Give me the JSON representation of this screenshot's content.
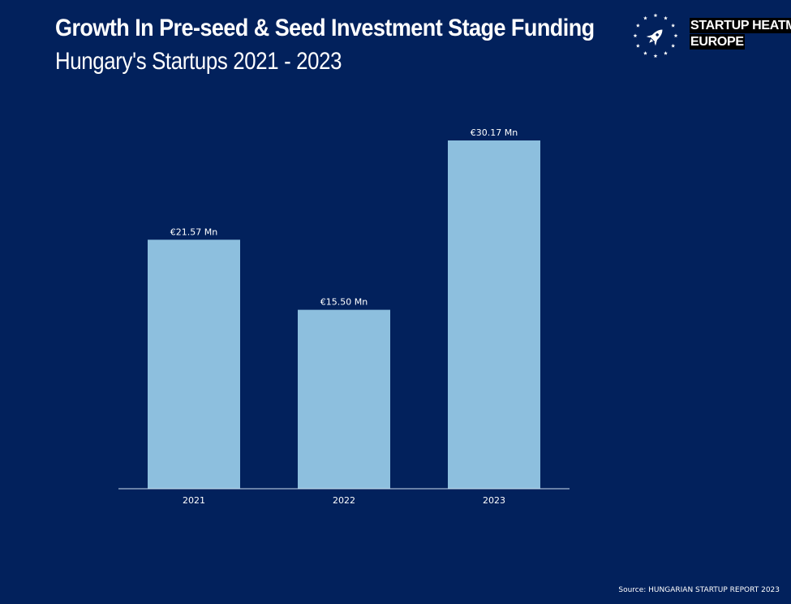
{
  "header": {
    "title": "Growth In Pre-seed & Seed Investment Stage Funding",
    "subtitle": "Hungary's Startups 2021 - 2023"
  },
  "brand": {
    "line1": "STARTUP HEATMAP",
    "line2": "EUROPE",
    "logo_icon": "rocket-in-star-circle-icon"
  },
  "source": "Source: HUNGARIAN STARTUP REPORT 2023",
  "colors": {
    "background": "#02215c",
    "bar": "#8dbfde",
    "text": "#ffffff"
  },
  "chart_data": {
    "type": "bar",
    "categories": [
      "2021",
      "2022",
      "2023"
    ],
    "values": [
      21.57,
      15.5,
      30.17
    ],
    "data_labels": [
      "€21.57 Mn",
      "€15.50 Mn",
      "€30.17 Mn"
    ],
    "ylim": [
      0,
      32
    ],
    "grid": false
  }
}
